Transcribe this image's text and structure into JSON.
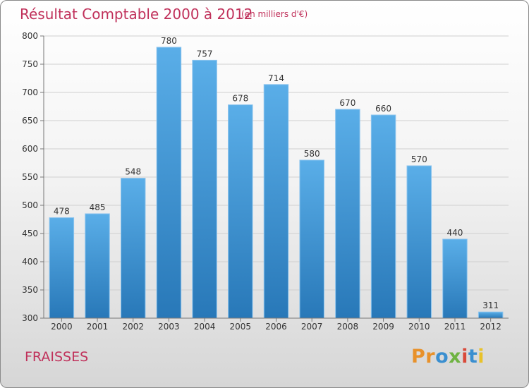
{
  "title": "Résultat Comptable 2000 à 2012",
  "subtitle": "(en milliers d'€)",
  "commune": "FRAISSES",
  "logo": {
    "p1": "Pr",
    "p2": "o",
    "p3": "x",
    "p4": "i",
    "p5": "t",
    "p6": "i"
  },
  "colors": {
    "bar": "#3b8fd8",
    "title": "#c0305a"
  },
  "chart_data": {
    "type": "bar",
    "title": "Résultat Comptable 2000 à 2012",
    "subtitle": "(en milliers d'€)",
    "categories": [
      "2000",
      "2001",
      "2002",
      "2003",
      "2004",
      "2005",
      "2006",
      "2007",
      "2008",
      "2009",
      "2010",
      "2011",
      "2012"
    ],
    "values": [
      478,
      485,
      548,
      780,
      757,
      678,
      714,
      580,
      670,
      660,
      570,
      440,
      311
    ],
    "ylim": [
      300,
      800
    ],
    "yticks": [
      300,
      350,
      400,
      450,
      500,
      550,
      600,
      650,
      700,
      750,
      800
    ],
    "xlabel": "",
    "ylabel": "",
    "grid": true
  }
}
